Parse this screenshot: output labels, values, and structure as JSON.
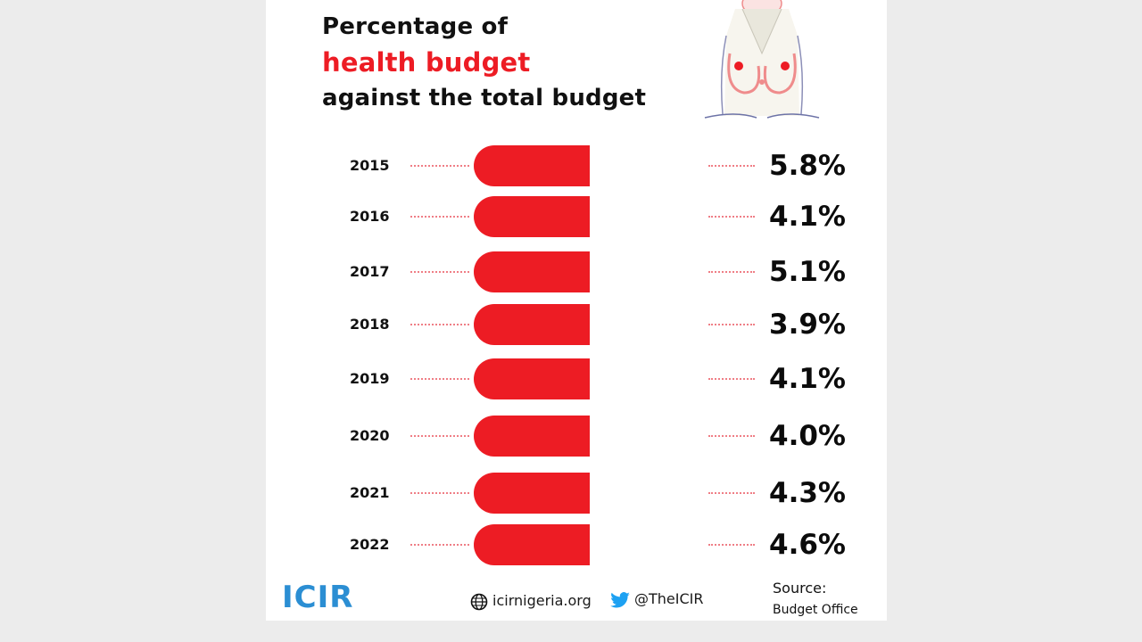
{
  "title": {
    "line1": "Percentage of",
    "line2": "health budget",
    "line3": "against the total budget"
  },
  "colors": {
    "bar": "#ed1c24",
    "accent": "#ed1c24",
    "logo": "#2b8ed3",
    "dots": "#ef7e86"
  },
  "chart_data": {
    "type": "bar",
    "orientation": "horizontal",
    "title": "Percentage of health budget against the total budget",
    "categories": [
      "2015",
      "2016",
      "2017",
      "2018",
      "2019",
      "2020",
      "2021",
      "2022"
    ],
    "values": [
      5.8,
      4.1,
      5.1,
      3.9,
      4.1,
      4.0,
      4.3,
      4.6
    ],
    "value_labels": [
      "5.8%",
      "4.1%",
      "5.1%",
      "3.9%",
      "4.1%",
      "4.0%",
      "4.3%",
      "4.6%"
    ],
    "unit": "%",
    "grid": false,
    "legend": "none"
  },
  "footer": {
    "logo_text": "ICIR",
    "website": "icirnigeria.org",
    "twitter": "@TheICIR",
    "source_label": "Source:",
    "source": "Budget Office"
  },
  "icons": [
    "doctor-illustration",
    "globe-icon",
    "twitter-bird-icon",
    "icir-logo"
  ]
}
